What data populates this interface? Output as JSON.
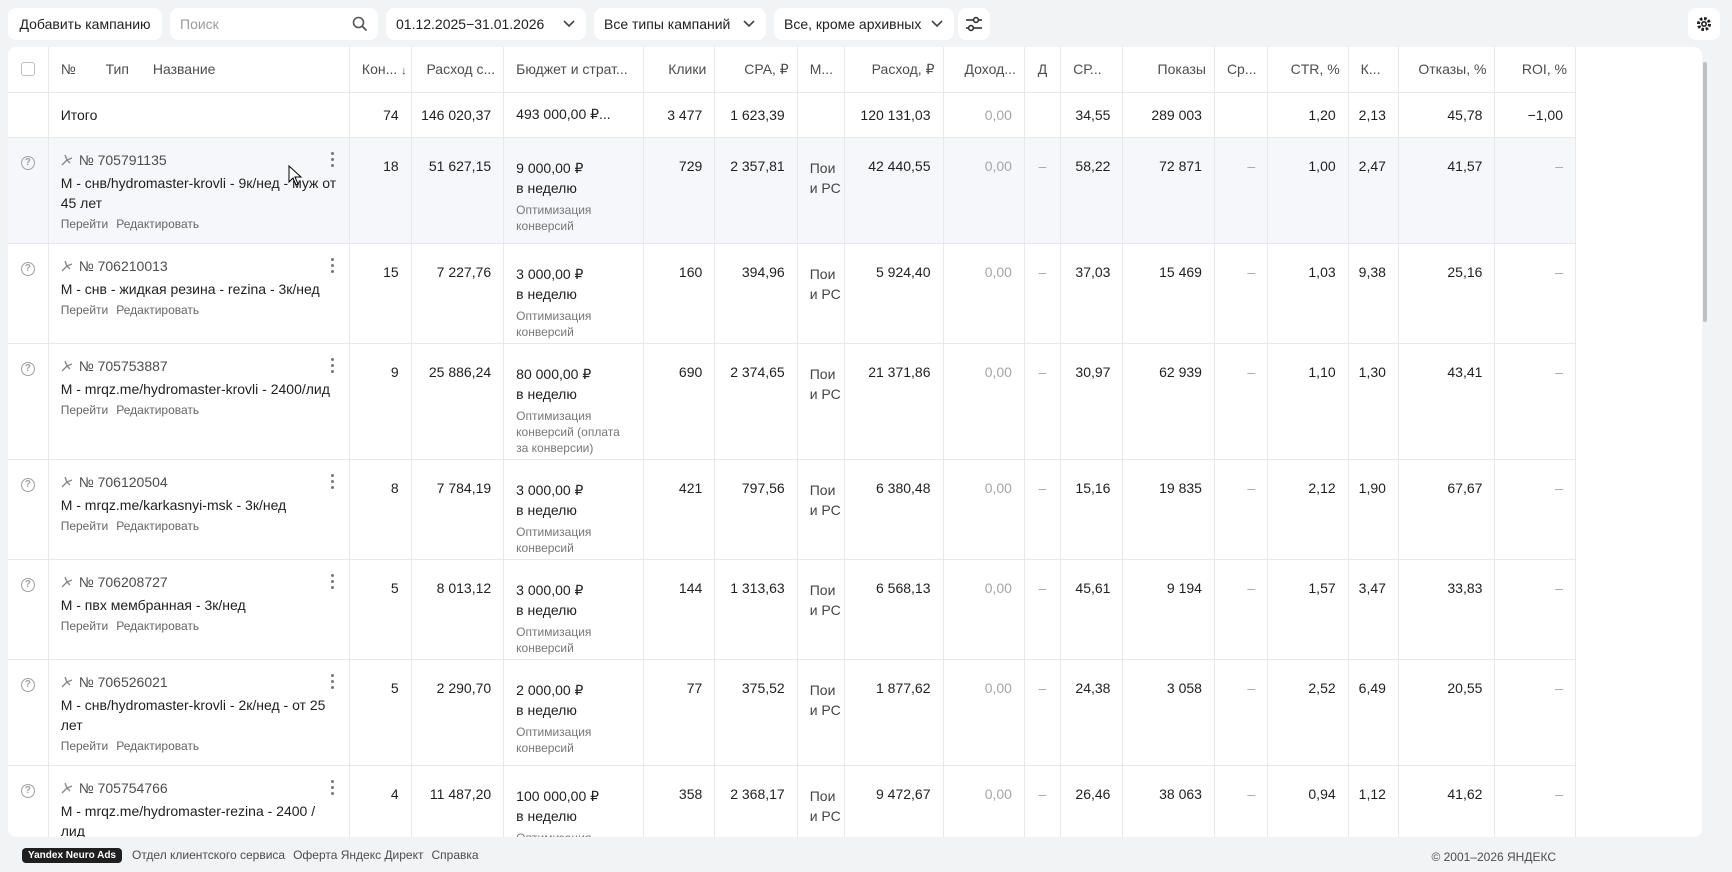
{
  "toolbar": {
    "add_label": "Добавить кампанию",
    "search_placeholder": "Поиск",
    "date_range": "01.12.2025−31.01.2026",
    "types_label": "Все типы кампаний",
    "archive_label": "Все, кроме архивных"
  },
  "columns": {
    "num": "№",
    "type": "Тип",
    "name": "Название",
    "conv": "Кон...",
    "spend_c": "Расход с...",
    "budget": "Бюджет и страт...",
    "clicks": "Клики",
    "cpa": "CPA, ₽",
    "m": "М...",
    "spend": "Расход, ₽",
    "income": "Доход...",
    "d": "Д",
    "cp": "СР...",
    "impr": "Показы",
    "avg": "Ср...",
    "ctr": "CTR, %",
    "k": "К...",
    "bounce": "Отказы, %",
    "roi": "ROI, %"
  },
  "total": {
    "label": "Итого",
    "conv": "74",
    "spend_c": "146 020,37",
    "budget": "493 000,00 ₽...",
    "clicks": "3 477",
    "cpa": "1 623,39",
    "spend": "120 131,03",
    "income": "0,00",
    "cp": "34,55",
    "impr": "289 003",
    "ctr": "1,20",
    "k": "2,13",
    "bounce": "45,78",
    "roi": "−1,00"
  },
  "links": {
    "go": "Перейти",
    "edit": "Редактировать"
  },
  "placement_lines": [
    "Пои",
    "и РС"
  ],
  "campaigns": [
    {
      "id": "№ 705791135",
      "name": "М - снв/hydromaster-krovli - 9к/нед - муж от 45 лет",
      "conv": "18",
      "spend_c": "51 627,15",
      "budget": "9 000,00 ₽",
      "period": "в неделю",
      "strategy": "Оптимизация конверсий",
      "clicks": "729",
      "cpa": "2 357,81",
      "spend": "42 440,55",
      "income": "0,00",
      "d": "–",
      "cp": "58,22",
      "impr": "72 871",
      "avg": "–",
      "ctr": "1,00",
      "k": "2,47",
      "bounce": "41,57",
      "roi": "–"
    },
    {
      "id": "№ 706210013",
      "name": "М - снв - жидкая резина - rezina - 3к/нед",
      "conv": "15",
      "spend_c": "7 227,76",
      "budget": "3 000,00 ₽",
      "period": "в неделю",
      "strategy": "Оптимизация конверсий",
      "clicks": "160",
      "cpa": "394,96",
      "spend": "5 924,40",
      "income": "0,00",
      "d": "–",
      "cp": "37,03",
      "impr": "15 469",
      "avg": "–",
      "ctr": "1,03",
      "k": "9,38",
      "bounce": "25,16",
      "roi": "–"
    },
    {
      "id": "№ 705753887",
      "name": "М - mrqz.me/hydromaster-krovli - 2400/лид",
      "conv": "9",
      "spend_c": "25 886,24",
      "budget": "80 000,00 ₽",
      "period": "в неделю",
      "strategy": "Оптимизация конверсий (оплата за конверсии)",
      "clicks": "690",
      "cpa": "2 374,65",
      "spend": "21 371,86",
      "income": "0,00",
      "d": "–",
      "cp": "30,97",
      "impr": "62 939",
      "avg": "–",
      "ctr": "1,10",
      "k": "1,30",
      "bounce": "43,41",
      "roi": "–"
    },
    {
      "id": "№ 706120504",
      "name": "М - mrqz.me/karkasnyi-msk - 3к/нед",
      "conv": "8",
      "spend_c": "7 784,19",
      "budget": "3 000,00 ₽",
      "period": "в неделю",
      "strategy": "Оптимизация конверсий",
      "clicks": "421",
      "cpa": "797,56",
      "spend": "6 380,48",
      "income": "0,00",
      "d": "–",
      "cp": "15,16",
      "impr": "19 835",
      "avg": "–",
      "ctr": "2,12",
      "k": "1,90",
      "bounce": "67,67",
      "roi": "–"
    },
    {
      "id": "№ 706208727",
      "name": "М - пвх мембранная - 3к/нед",
      "conv": "5",
      "spend_c": "8 013,12",
      "budget": "3 000,00 ₽",
      "period": "в неделю",
      "strategy": "Оптимизация конверсий",
      "clicks": "144",
      "cpa": "1 313,63",
      "spend": "6 568,13",
      "income": "0,00",
      "d": "–",
      "cp": "45,61",
      "impr": "9 194",
      "avg": "–",
      "ctr": "1,57",
      "k": "3,47",
      "bounce": "33,83",
      "roi": "–"
    },
    {
      "id": "№ 706526021",
      "name": "М - снв/hydromaster-krovli - 2к/нед - от 25 лет",
      "conv": "5",
      "spend_c": "2 290,70",
      "budget": "2 000,00 ₽",
      "period": "в неделю",
      "strategy": "Оптимизация конверсий",
      "clicks": "77",
      "cpa": "375,52",
      "spend": "1 877,62",
      "income": "0,00",
      "d": "–",
      "cp": "24,38",
      "impr": "3 058",
      "avg": "–",
      "ctr": "2,52",
      "k": "6,49",
      "bounce": "20,55",
      "roi": "–"
    },
    {
      "id": "№ 705754766",
      "name": "М - mrqz.me/hydromaster-rezina - 2400 / лид",
      "conv": "4",
      "spend_c": "11 487,20",
      "budget": "100 000,00 ₽",
      "period": "в неделю",
      "strategy": "Оптимизация",
      "clicks": "358",
      "cpa": "2 368,17",
      "spend": "9 472,67",
      "income": "0,00",
      "d": "–",
      "cp": "26,46",
      "impr": "38 063",
      "avg": "–",
      "ctr": "0,94",
      "k": "1,12",
      "bounce": "41,62",
      "roi": "–"
    }
  ],
  "footer": {
    "logo": "Yandex Neuro Ads",
    "link1": "Отдел клиентского сервиса",
    "link2": "Оферта Яндекс Директ",
    "link3": "Справка",
    "copyright": "© 2001–2026 ЯНДЕКС"
  },
  "icons": [
    "search-icon",
    "chevron-down-icon",
    "filters-icon",
    "gear-icon",
    "question-icon",
    "kebab-icon",
    "campaign-type-icon",
    "sort-down-icon"
  ]
}
